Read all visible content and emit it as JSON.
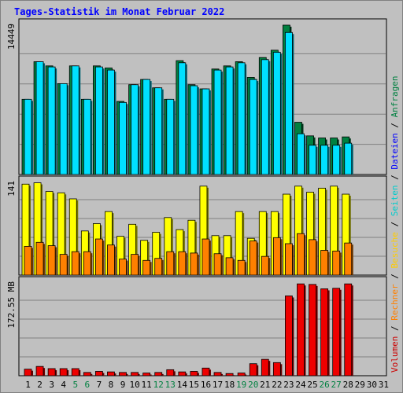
{
  "title": "Tages-Statistik im Monat Februar 2022",
  "right_legend": [
    {
      "text": "Volumen",
      "color": "#cc0000"
    },
    {
      "text": " / ",
      "color": "#000000"
    },
    {
      "text": "Rechner",
      "color": "#ff8000"
    },
    {
      "text": " / ",
      "color": "#000000"
    },
    {
      "text": "Besuche",
      "color": "#ffcc00"
    },
    {
      "text": " / ",
      "color": "#000000"
    },
    {
      "text": "Seiten",
      "color": "#00cccc"
    },
    {
      "text": " / ",
      "color": "#000000"
    },
    {
      "text": "Dateien",
      "color": "#0000ff"
    },
    {
      "text": " / ",
      "color": "#000000"
    },
    {
      "text": "Anfragen",
      "color": "#008040"
    }
  ],
  "chart_data": [
    {
      "type": "bar",
      "panel": "top",
      "ymax_label": "14449",
      "ylim": [
        0,
        14449
      ],
      "categories": [
        "1",
        "2",
        "3",
        "4",
        "5",
        "6",
        "7",
        "8",
        "9",
        "10",
        "11",
        "12",
        "13",
        "14",
        "15",
        "16",
        "17",
        "18",
        "19",
        "20",
        "21",
        "22",
        "23",
        "24",
        "25",
        "26",
        "27",
        "28",
        "29",
        "30",
        "31"
      ],
      "weekend_days": [
        "5",
        "6",
        "12",
        "13",
        "19",
        "20",
        "26",
        "27"
      ],
      "series": [
        {
          "name": "Anfragen",
          "color": "#008040",
          "values": [
            7200,
            10800,
            10400,
            8700,
            10400,
            7200,
            10400,
            10200,
            7000,
            8600,
            9100,
            8300,
            7200,
            10900,
            8600,
            8200,
            10100,
            10400,
            10800,
            9300,
            11200,
            11900,
            14300,
            5000,
            3700,
            3500,
            3500,
            3600,
            0,
            0,
            0
          ]
        },
        {
          "name": "Dateien",
          "color": "#00e0ff",
          "values": [
            7200,
            10800,
            10300,
            8700,
            10400,
            7200,
            10300,
            10000,
            6900,
            8600,
            9100,
            8300,
            7200,
            10700,
            8500,
            8200,
            10000,
            10300,
            10700,
            9100,
            11000,
            11700,
            13600,
            3900,
            2800,
            2800,
            2800,
            3000,
            0,
            0,
            0
          ]
        }
      ]
    },
    {
      "type": "bar",
      "panel": "middle",
      "ymax_label": "141",
      "ylim": [
        0,
        141
      ],
      "categories": [
        "1",
        "2",
        "3",
        "4",
        "5",
        "6",
        "7",
        "8",
        "9",
        "10",
        "11",
        "12",
        "13",
        "14",
        "15",
        "16",
        "17",
        "18",
        "19",
        "20",
        "21",
        "22",
        "23",
        "24",
        "25",
        "26",
        "27",
        "28",
        "29",
        "30",
        "31"
      ],
      "series": [
        {
          "name": "Besuche",
          "color": "#ffff00",
          "values": [
            136,
            138,
            125,
            123,
            114,
            66,
            77,
            95,
            58,
            76,
            52,
            64,
            86,
            68,
            82,
            133,
            59,
            59,
            95,
            55,
            95,
            95,
            121,
            133,
            124,
            130,
            133,
            121,
            0,
            0,
            0
          ]
        },
        {
          "name": "Rechner",
          "color": "#ff8000",
          "values": [
            43,
            49,
            44,
            31,
            35,
            35,
            54,
            45,
            24,
            31,
            22,
            25,
            35,
            35,
            33,
            54,
            32,
            26,
            22,
            51,
            28,
            56,
            47,
            62,
            53,
            37,
            36,
            48,
            0,
            0,
            0
          ]
        }
      ]
    },
    {
      "type": "bar",
      "panel": "bottom",
      "ymax_label": "172.55 MB",
      "ylim": [
        0,
        172.55
      ],
      "categories": [
        "1",
        "2",
        "3",
        "4",
        "5",
        "6",
        "7",
        "8",
        "9",
        "10",
        "11",
        "12",
        "13",
        "14",
        "15",
        "16",
        "17",
        "18",
        "19",
        "20",
        "21",
        "22",
        "23",
        "24",
        "25",
        "26",
        "27",
        "28",
        "29",
        "30",
        "31"
      ],
      "series": [
        {
          "name": "Volumen",
          "color": "#ee0000",
          "values": [
            12,
            17,
            13,
            13,
            13,
            6,
            8,
            7,
            6,
            6,
            5,
            6,
            11,
            7,
            8,
            14,
            6,
            4,
            5,
            22,
            30,
            24,
            146,
            168,
            167,
            159,
            160,
            168,
            0,
            0,
            0
          ]
        }
      ]
    }
  ]
}
